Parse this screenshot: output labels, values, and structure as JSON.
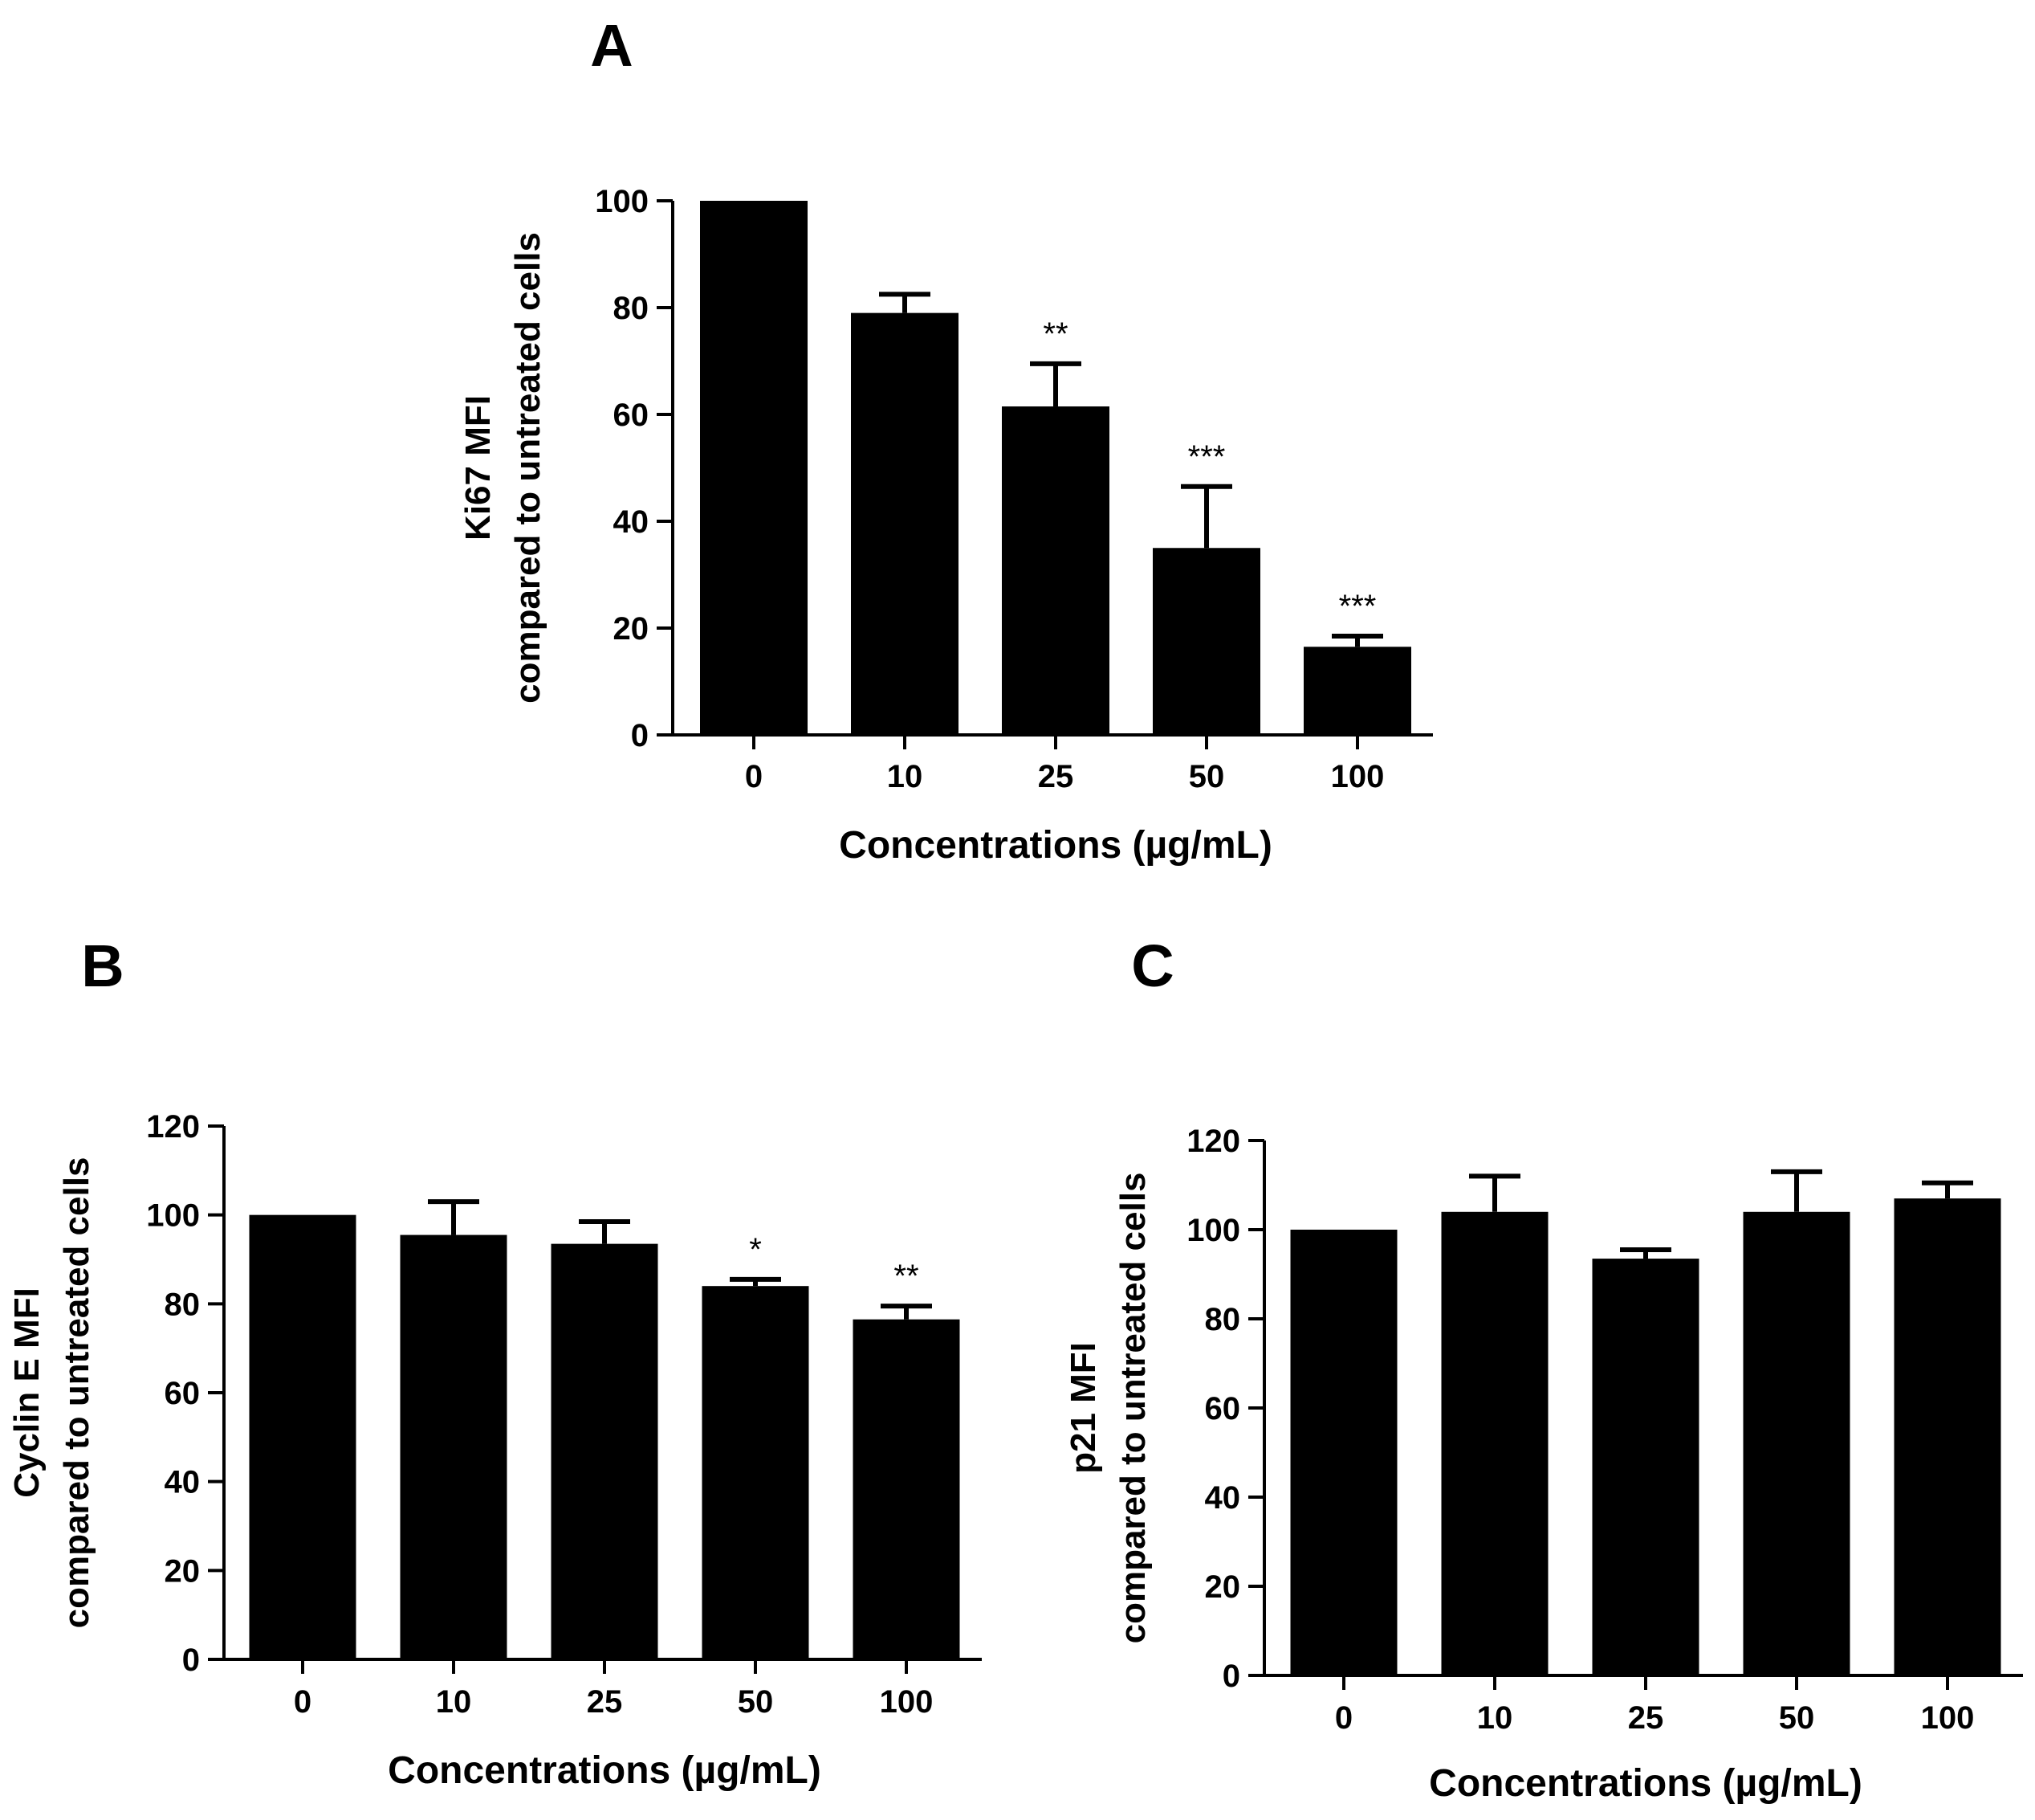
{
  "chart_data": [
    {
      "panel": "A",
      "type": "bar",
      "categories": [
        "0",
        "10",
        "25",
        "50",
        "100"
      ],
      "values": [
        100,
        79,
        61.5,
        35,
        16.5
      ],
      "errors": [
        0,
        3.5,
        8,
        11.5,
        2
      ],
      "significance": [
        "",
        "",
        "**",
        "***",
        "***"
      ],
      "xlabel": "Concentrations (µg/mL)",
      "ylabel_line1": "Ki67 MFI",
      "ylabel_line2": "compared to untreated cells",
      "ylim": [
        0,
        100
      ],
      "yticks": [
        0,
        20,
        40,
        60,
        80,
        100
      ],
      "color": "#000000"
    },
    {
      "panel": "B",
      "type": "bar",
      "categories": [
        "0",
        "10",
        "25",
        "50",
        "100"
      ],
      "values": [
        100,
        95.5,
        93.5,
        84,
        76.5
      ],
      "errors": [
        0,
        7.5,
        5,
        1.5,
        3
      ],
      "significance": [
        "",
        "",
        "",
        "*",
        "**"
      ],
      "xlabel": "Concentrations (µg/mL)",
      "ylabel_line1": "Cyclin E MFI",
      "ylabel_line2": "compared to untreated cells",
      "ylim": [
        0,
        120
      ],
      "yticks": [
        0,
        20,
        40,
        60,
        80,
        100,
        120
      ],
      "color": "#000000"
    },
    {
      "panel": "C",
      "type": "bar",
      "categories": [
        "0",
        "10",
        "25",
        "50",
        "100"
      ],
      "values": [
        100,
        104,
        93.5,
        104,
        107
      ],
      "errors": [
        0,
        8,
        2,
        9,
        3.5
      ],
      "significance": [
        "",
        "",
        "",
        "",
        ""
      ],
      "xlabel": "Concentrations (µg/mL)",
      "ylabel_line1": "p21 MFI",
      "ylabel_line2": "compared to untreated cells",
      "ylim": [
        0,
        120
      ],
      "yticks": [
        0,
        20,
        40,
        60,
        80,
        100,
        120
      ],
      "color": "#000000"
    }
  ]
}
